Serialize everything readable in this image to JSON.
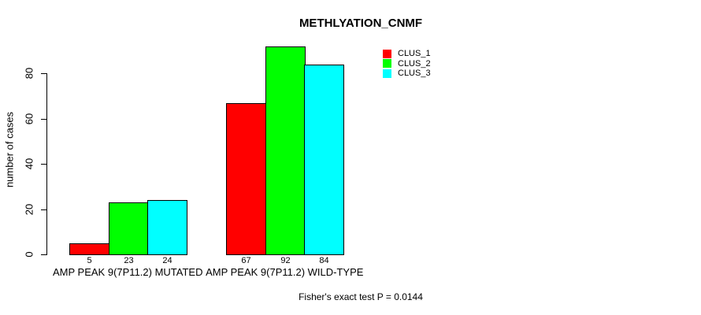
{
  "chart_data": {
    "type": "bar",
    "title": "METHLYATION_CNMF",
    "ylabel": "number of cases",
    "xlabel": "",
    "categories": [
      "AMP PEAK 9(7P11.2) MUTATED",
      "AMP PEAK 9(7P11.2) WILD-TYPE"
    ],
    "series": [
      {
        "name": "CLUS_1",
        "color": "#ff0000",
        "values": [
          5,
          67
        ]
      },
      {
        "name": "CLUS_2",
        "color": "#00ff00",
        "values": [
          23,
          92
        ]
      },
      {
        "name": "CLUS_3",
        "color": "#00ffff",
        "values": [
          24,
          84
        ]
      }
    ],
    "yticks": [
      0,
      20,
      40,
      60,
      80
    ],
    "ylim": [
      0,
      92
    ],
    "grid": false,
    "legend_position": "top-right",
    "bar_value_labels_shown": true,
    "bar_border_color": "#000000"
  },
  "footer": {
    "text": "Fisher's exact test P = 0.0144"
  }
}
